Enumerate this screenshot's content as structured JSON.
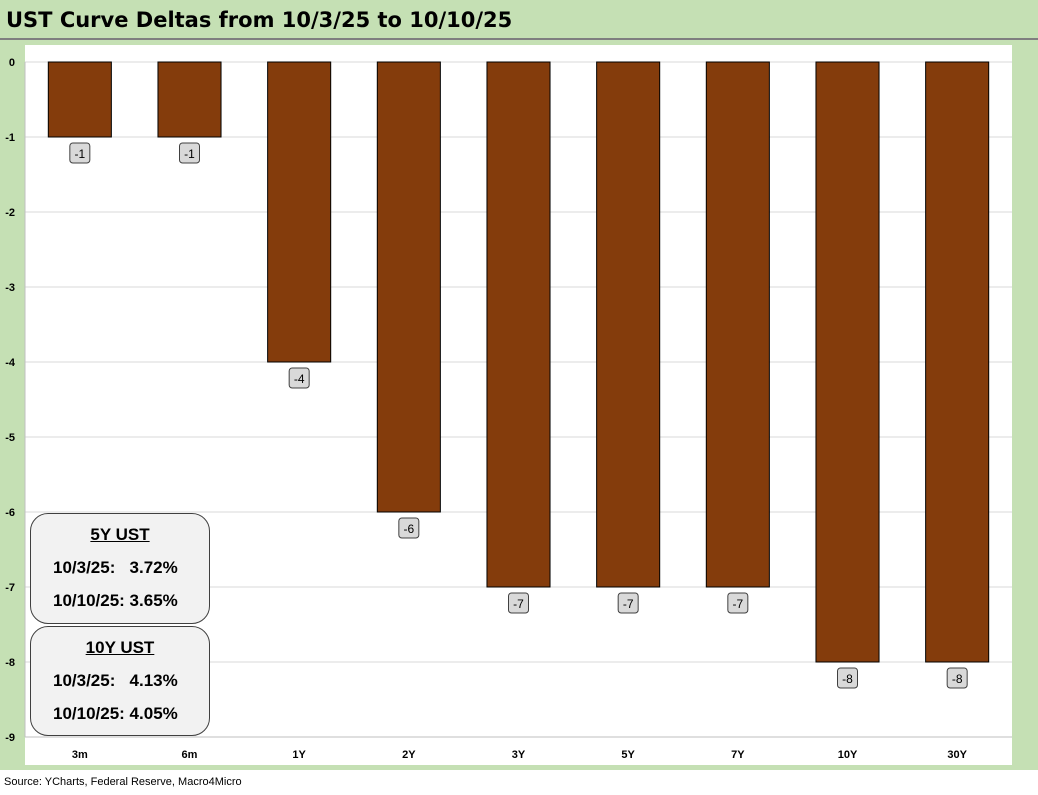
{
  "title": "UST Curve Deltas from 10/3/25 to 10/10/25",
  "source": "Source: YCharts, Federal Reserve, Macro4Micro",
  "colors": {
    "bar": "#843c0c",
    "frame": "#c5e0b4",
    "label_box": "#d9d9d9"
  },
  "chart_data": {
    "type": "bar",
    "categories": [
      "3m",
      "6m",
      "1Y",
      "2Y",
      "3Y",
      "5Y",
      "7Y",
      "10Y",
      "30Y"
    ],
    "values": [
      -1,
      -1,
      -4,
      -6,
      -7,
      -7,
      -7,
      -8,
      -8
    ],
    "data_labels": [
      "-1",
      "-1",
      "-4",
      "-6",
      "-7",
      "-7",
      "-7",
      "-8",
      "-8"
    ],
    "ylim": [
      -9,
      0
    ],
    "yticks": [
      0,
      -1,
      -2,
      -3,
      -4,
      -5,
      -6,
      -7,
      -8,
      -9
    ],
    "grid": true,
    "title": "UST Curve Deltas from 10/3/25 to 10/10/25",
    "xlabel": "",
    "ylabel": ""
  },
  "callouts": [
    {
      "header": "5Y UST",
      "line1": "10/3/25:   3.72%",
      "line2": "10/10/25: 3.65%"
    },
    {
      "header": "10Y UST",
      "line1": "10/3/25:   4.13%",
      "line2": "10/10/25: 4.05%"
    }
  ]
}
